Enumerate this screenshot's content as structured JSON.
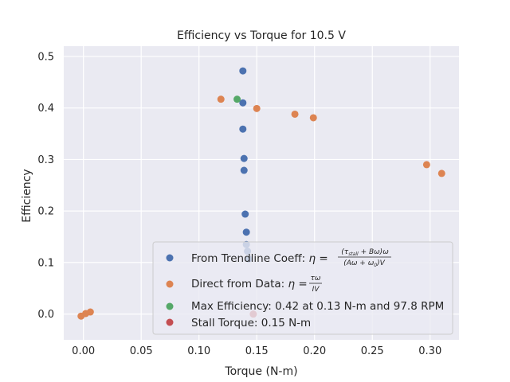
{
  "chart_data": {
    "type": "scatter",
    "title": "Efficiency vs Torque for 10.5 V",
    "xlabel": "Torque (N-m)",
    "ylabel": "Efficiency",
    "xlim": [
      -0.017,
      0.325
    ],
    "ylim": [
      -0.05,
      0.52
    ],
    "grid": true,
    "legend_position": "lower-right",
    "x_ticks": [
      {
        "value": 0.0,
        "label": "0.00"
      },
      {
        "value": 0.05,
        "label": "0.05"
      },
      {
        "value": 0.1,
        "label": "0.10"
      },
      {
        "value": 0.15,
        "label": "0.15"
      },
      {
        "value": 0.2,
        "label": "0.20"
      },
      {
        "value": 0.25,
        "label": "0.25"
      },
      {
        "value": 0.3,
        "label": "0.30"
      }
    ],
    "y_ticks": [
      {
        "value": 0.0,
        "label": "0.0"
      },
      {
        "value": 0.1,
        "label": "0.1"
      },
      {
        "value": 0.2,
        "label": "0.2"
      },
      {
        "value": 0.3,
        "label": "0.3"
      },
      {
        "value": 0.4,
        "label": "0.4"
      },
      {
        "value": 0.5,
        "label": "0.5"
      }
    ],
    "series": [
      {
        "key": "trendline",
        "color": "#4c72b0",
        "points": [
          {
            "x": 0.138,
            "y": 0.472
          },
          {
            "x": 0.138,
            "y": 0.41
          },
          {
            "x": 0.138,
            "y": 0.359
          },
          {
            "x": 0.139,
            "y": 0.302
          },
          {
            "x": 0.139,
            "y": 0.279
          },
          {
            "x": 0.14,
            "y": 0.194
          },
          {
            "x": 0.141,
            "y": 0.159
          },
          {
            "x": 0.141,
            "y": 0.135
          },
          {
            "x": 0.142,
            "y": 0.122
          },
          {
            "x": 0.143,
            "y": 0.107
          }
        ]
      },
      {
        "key": "direct",
        "color": "#dd8452",
        "points": [
          {
            "x": 0.119,
            "y": 0.417
          },
          {
            "x": 0.15,
            "y": 0.399
          },
          {
            "x": 0.183,
            "y": 0.388
          },
          {
            "x": 0.199,
            "y": 0.381
          },
          {
            "x": 0.297,
            "y": 0.29
          },
          {
            "x": 0.31,
            "y": 0.273
          },
          {
            "x": -0.002,
            "y": -0.004
          },
          {
            "x": 0.002,
            "y": 0.001
          },
          {
            "x": 0.006,
            "y": 0.004
          }
        ]
      },
      {
        "key": "max",
        "color": "#55a868",
        "points": [
          {
            "x": 0.133,
            "y": 0.417
          }
        ]
      },
      {
        "key": "stall",
        "color": "#c44e52",
        "points": [
          {
            "x": 0.147,
            "y": 0.0
          }
        ]
      }
    ],
    "legend": {
      "trendline": {
        "prefix": "From Trendline Coeff: ",
        "eta_eq": "η =",
        "numerator": "(τ",
        "num_sub": "stall",
        "numerator_rest": " + Bω)ω",
        "denominator": "(Aω + ω",
        "den_sub": "0",
        "denominator_rest": ")V"
      },
      "direct": {
        "prefix": "Direct from Data: ",
        "eta_eq": "η =",
        "numerator": "τω",
        "denominator": "IV"
      },
      "max": {
        "text": "Max Efficiency: 0.42 at 0.13 N-m and 97.8 RPM"
      },
      "stall": {
        "text": "Stall Torque: 0.15 N-m"
      }
    }
  }
}
